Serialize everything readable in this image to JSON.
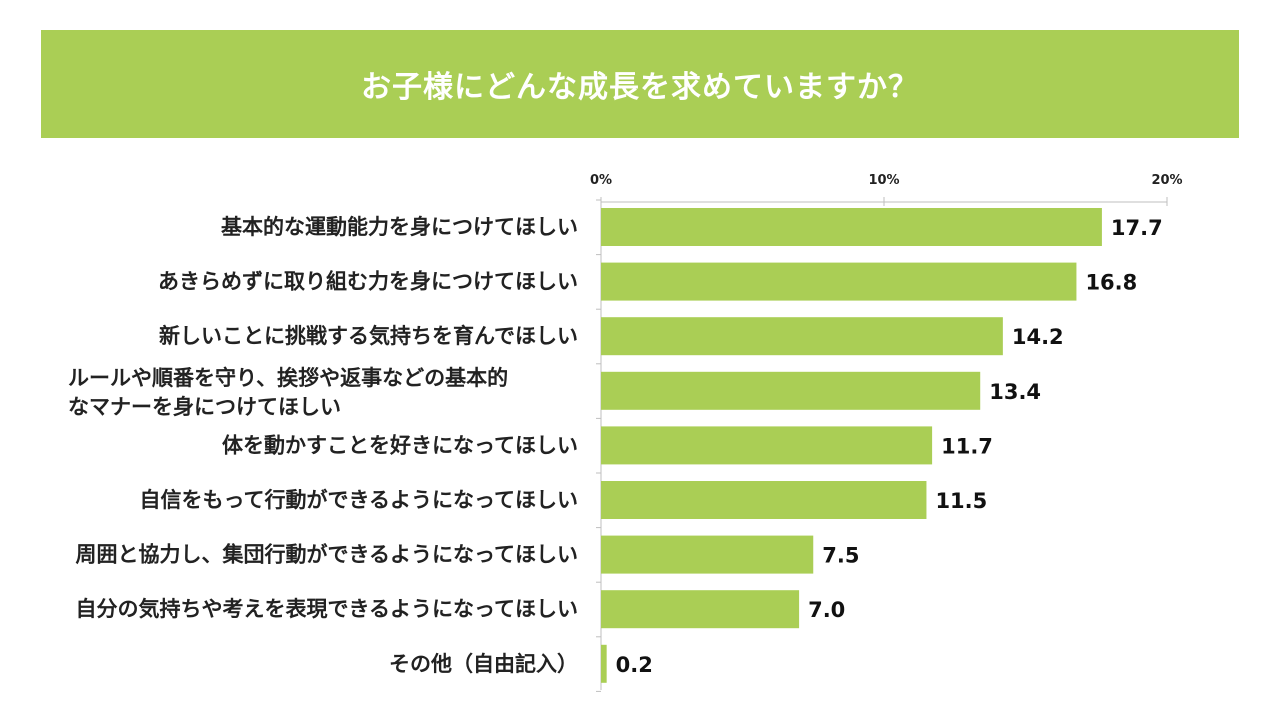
{
  "colors": {
    "accent": "#aace55",
    "title_text": "#ffffff",
    "axis": "#bfbfbf"
  },
  "chart_data": {
    "type": "bar",
    "orientation": "horizontal",
    "title": "お子様にどんな成長を求めていますか？",
    "categories": [
      [
        "基本的な運動能力を身につけてほしい"
      ],
      [
        "あきらめずに取り組む力を身につけてほしい"
      ],
      [
        "新しいことに挑戦する気持ちを育んでほしい"
      ],
      [
        "ルールや順番を守り、挨拶や返事などの基本的",
        "なマナーを身につけてほしい"
      ],
      [
        "体を動かすことを好きになってほしい"
      ],
      [
        "自信をもって行動ができるようになってほしい"
      ],
      [
        "周囲と協力し、集団行動ができるようになってほしい"
      ],
      [
        "自分の気持ちや考えを表現できるようになってほしい"
      ],
      [
        "その他（自由記入）"
      ]
    ],
    "values": [
      17.7,
      16.8,
      14.2,
      13.4,
      11.7,
      11.5,
      7.5,
      7.0,
      0.2
    ],
    "value_labels": [
      "17.7",
      "16.8",
      "14.2",
      "13.4",
      "11.7",
      "11.5",
      "7.5",
      "7.0",
      "0.2"
    ],
    "xlim": [
      0,
      20
    ],
    "ticks": [
      0,
      10,
      20
    ],
    "tick_labels": [
      "0%",
      "10%",
      "20%"
    ],
    "axis_position": "top",
    "grid": false,
    "legend": "none"
  }
}
